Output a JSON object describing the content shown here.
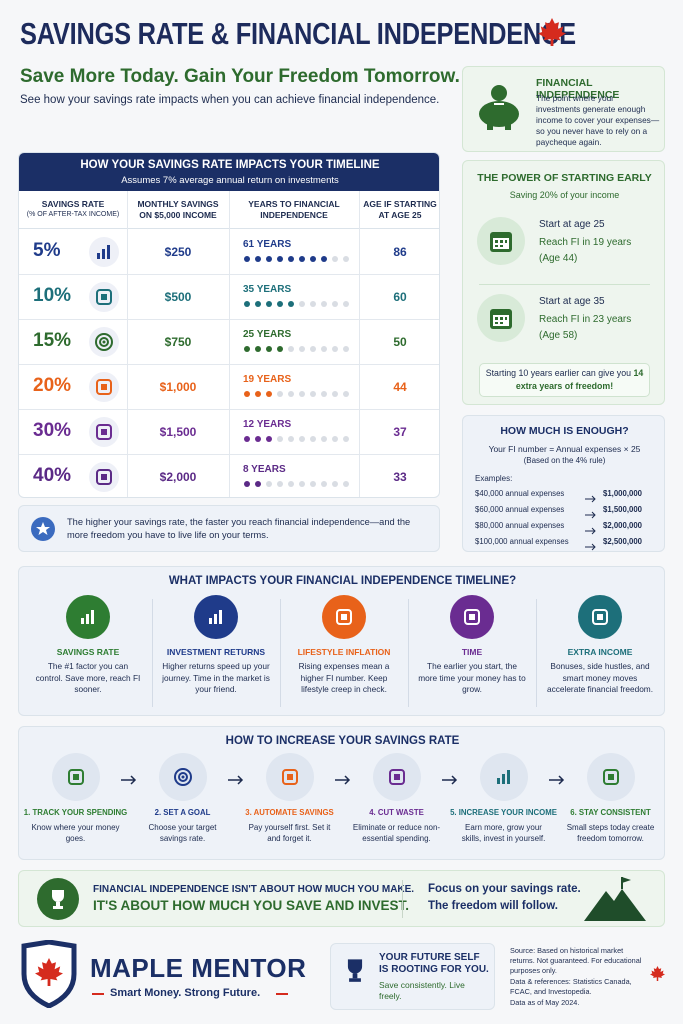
{
  "header": {
    "title": "SAVINGS RATE & FINANCIAL INDEPENDENCE",
    "tagline": "Save More Today. Gain Your Freedom Tomorrow.",
    "description": "See how your savings rate impacts when you can achieve financial independence."
  },
  "fi_box": {
    "title": "FINANCIAL INDEPENDENCE",
    "text": "The point where your investments generate enough income to cover your expenses—so you never have to rely on a paycheque again."
  },
  "table": {
    "title": "HOW YOUR SAVINGS RATE IMPACTS YOUR TIMELINE",
    "subtitle": "Assumes 7% average annual return on investments",
    "columns": [
      "SAVINGS RATE",
      "MONTHLY SAVINGS ON $5,000 INCOME",
      "YEARS TO FINANCIAL INDEPENDENCE",
      "AGE IF STARTING AT AGE 25"
    ],
    "rate_note": "(% OF AFTER-TAX INCOME)",
    "dots_total": 10,
    "rows": [
      {
        "rate": "5%",
        "monthly": "$250",
        "years": "61 YEARS",
        "age": "86",
        "dots_filled": 8,
        "color": "#1f3b8a"
      },
      {
        "rate": "10%",
        "monthly": "$500",
        "years": "35 YEARS",
        "age": "60",
        "dots_filled": 5,
        "color": "#1d6f7a"
      },
      {
        "rate": "15%",
        "monthly": "$750",
        "years": "25 YEARS",
        "age": "50",
        "dots_filled": 4,
        "color": "#2e6b2e"
      },
      {
        "rate": "20%",
        "monthly": "$1,000",
        "years": "19 YEARS",
        "age": "44",
        "dots_filled": 3,
        "color": "#e8621a"
      },
      {
        "rate": "30%",
        "monthly": "$1,500",
        "years": "12 YEARS",
        "age": "37",
        "dots_filled": 3,
        "color": "#6a2c91"
      },
      {
        "rate": "40%",
        "monthly": "$2,000",
        "years": "8 YEARS",
        "age": "33",
        "dots_filled": 2,
        "color": "#5b2a86"
      }
    ],
    "note": "The higher your savings rate, the faster you reach financial independence—and the more freedom you have to live life on your terms."
  },
  "early": {
    "title": "THE POWER OF STARTING EARLY",
    "subtitle": "Saving 20% of your income",
    "scenarios": [
      {
        "start": "Start at age 25",
        "reach": "Reach FI in 19 years",
        "age": "(Age 44)"
      },
      {
        "start": "Start at age 35",
        "reach": "Reach FI in 23 years",
        "age": "(Age 58)"
      }
    ],
    "callout": "Starting 10 years earlier can give you",
    "callout_bold": "14 extra years of freedom!"
  },
  "enough": {
    "title": "HOW MUCH IS ENOUGH?",
    "formula": "Your FI number = Annual expenses × 25",
    "basis": "(Based on the 4% rule)",
    "examples_label": "Examples:",
    "examples": [
      [
        "$40,000 annual expenses",
        "$1,000,000"
      ],
      [
        "$60,000 annual expenses",
        "$1,500,000"
      ],
      [
        "$80,000 annual expenses",
        "$2,000,000"
      ],
      [
        "$100,000 annual expenses",
        "$2,500,000"
      ]
    ]
  },
  "impacts": {
    "title": "WHAT IMPACTS YOUR FINANCIAL INDEPENDENCE TIMELINE?",
    "items": [
      {
        "title": "SAVINGS RATE",
        "text": "The #1 factor you can control. Save more, reach FI sooner.",
        "color": "#2e7d32"
      },
      {
        "title": "INVESTMENT RETURNS",
        "text": "Higher returns speed up your journey. Time in the market is your friend.",
        "color": "#1f3b8a"
      },
      {
        "title": "LIFESTYLE INFLATION",
        "text": "Rising expenses mean a higher FI number. Keep lifestyle creep in check.",
        "color": "#e8621a"
      },
      {
        "title": "TIME",
        "text": "The earlier you start, the more time your money has to grow.",
        "color": "#6a2c91"
      },
      {
        "title": "EXTRA INCOME",
        "text": "Bonuses, side hustles, and smart money moves accelerate financial freedom.",
        "color": "#1d6f7a"
      }
    ]
  },
  "steps": {
    "title": "HOW TO INCREASE YOUR SAVINGS RATE",
    "items": [
      {
        "title": "1. TRACK YOUR SPENDING",
        "text": "Know where your money goes.",
        "color": "#2e7d32"
      },
      {
        "title": "2. SET A GOAL",
        "text": "Choose your target savings rate.",
        "color": "#1f3b8a"
      },
      {
        "title": "3. AUTOMATE SAVINGS",
        "text": "Pay yourself first. Set it and forget it.",
        "color": "#e8621a"
      },
      {
        "title": "4. CUT WASTE",
        "text": "Eliminate or reduce non-essential spending.",
        "color": "#6a2c91"
      },
      {
        "title": "5. INCREASE YOUR INCOME",
        "text": "Earn more, grow your skills, invest in yourself.",
        "color": "#1d6f7a"
      },
      {
        "title": "6. STAY CONSISTENT",
        "text": "Small steps today create freedom tomorrow.",
        "color": "#2e7d32"
      }
    ]
  },
  "banner": {
    "line1": "FINANCIAL INDEPENDENCE ISN'T ABOUT HOW MUCH YOU MAKE.",
    "line2": "IT'S ABOUT HOW MUCH YOU SAVE AND INVEST.",
    "right1": "Focus on your savings rate.",
    "right2": "The freedom will follow."
  },
  "footer": {
    "brand": "MAPLE MENTOR",
    "slogan": "Smart Money. Strong Future.",
    "promo_title": "YOUR FUTURE SELF IS ROOTING FOR YOU.",
    "promo_text": "Save consistently. Live freely.",
    "source": "Source: Based on historical market returns. Not guaranteed. For educational purposes only.",
    "refs": "Data & references: Statistics Canada, FCAC, and Investopedia.",
    "date": "Data as of May 2024."
  }
}
